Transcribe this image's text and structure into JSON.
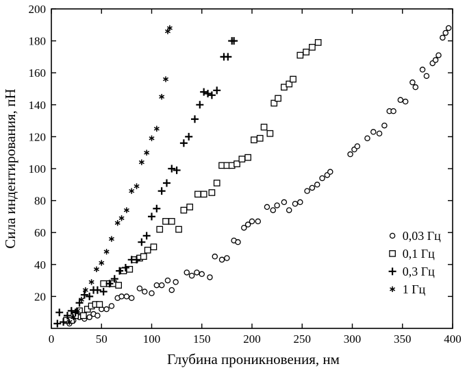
{
  "chart_data": {
    "type": "scatter",
    "title": "",
    "xlabel": "Глубина проникновения, нм",
    "ylabel": "Сила индентирования, пН",
    "xlim": [
      0,
      400
    ],
    "ylim": [
      0,
      200
    ],
    "x_ticks": [
      0,
      50,
      100,
      150,
      200,
      250,
      300,
      350,
      400
    ],
    "y_ticks": [
      20,
      40,
      60,
      80,
      100,
      120,
      140,
      160,
      180,
      200
    ],
    "x_tick_labels": [
      "0",
      "50",
      "100",
      "150",
      "200",
      "250",
      "300",
      "350",
      "400"
    ],
    "y_tick_labels": [
      "20",
      "40",
      "60",
      "80",
      "100",
      "120",
      "140",
      "160",
      "180",
      "200"
    ],
    "grid": false,
    "legend_position": "bottom-right",
    "series": [
      {
        "name": "0,03 Гц",
        "marker": "circle",
        "points": [
          [
            18,
            3
          ],
          [
            22,
            5
          ],
          [
            28,
            7
          ],
          [
            33,
            6
          ],
          [
            38,
            7
          ],
          [
            42,
            9
          ],
          [
            46,
            8
          ],
          [
            50,
            12
          ],
          [
            55,
            12
          ],
          [
            60,
            14
          ],
          [
            66,
            19
          ],
          [
            70,
            20
          ],
          [
            75,
            20
          ],
          [
            80,
            19
          ],
          [
            88,
            25
          ],
          [
            93,
            23
          ],
          [
            100,
            22
          ],
          [
            105,
            27
          ],
          [
            110,
            27
          ],
          [
            116,
            30
          ],
          [
            120,
            24
          ],
          [
            124,
            29
          ],
          [
            135,
            35
          ],
          [
            140,
            33
          ],
          [
            145,
            35
          ],
          [
            150,
            34
          ],
          [
            158,
            32
          ],
          [
            163,
            45
          ],
          [
            170,
            43
          ],
          [
            175,
            44
          ],
          [
            182,
            55
          ],
          [
            186,
            54
          ],
          [
            192,
            63
          ],
          [
            196,
            65
          ],
          [
            200,
            67
          ],
          [
            206,
            67
          ],
          [
            215,
            76
          ],
          [
            221,
            74
          ],
          [
            225,
            77
          ],
          [
            232,
            79
          ],
          [
            237,
            74
          ],
          [
            243,
            78
          ],
          [
            248,
            79
          ],
          [
            255,
            86
          ],
          [
            260,
            88
          ],
          [
            265,
            90
          ],
          [
            270,
            94
          ],
          [
            275,
            96
          ],
          [
            278,
            98
          ],
          [
            298,
            109
          ],
          [
            302,
            112
          ],
          [
            305,
            114
          ],
          [
            315,
            119
          ],
          [
            321,
            123
          ],
          [
            327,
            122
          ],
          [
            332,
            127
          ],
          [
            337,
            136
          ],
          [
            341,
            136
          ],
          [
            348,
            143
          ],
          [
            353,
            142
          ],
          [
            360,
            154
          ],
          [
            363,
            151
          ],
          [
            370,
            162
          ],
          [
            374,
            158
          ],
          [
            380,
            166
          ],
          [
            383,
            168
          ],
          [
            386,
            171
          ],
          [
            390,
            182
          ],
          [
            393,
            185
          ],
          [
            396,
            188
          ]
        ]
      },
      {
        "name": "0,1 Гц",
        "marker": "square",
        "points": [
          [
            15,
            5
          ],
          [
            20,
            5
          ],
          [
            24,
            8
          ],
          [
            28,
            11
          ],
          [
            32,
            8
          ],
          [
            36,
            12
          ],
          [
            40,
            14
          ],
          [
            44,
            15
          ],
          [
            48,
            15
          ],
          [
            52,
            28
          ],
          [
            58,
            28
          ],
          [
            62,
            28
          ],
          [
            67,
            27
          ],
          [
            72,
            36
          ],
          [
            78,
            37
          ],
          [
            83,
            43
          ],
          [
            88,
            44
          ],
          [
            92,
            45
          ],
          [
            96,
            49
          ],
          [
            102,
            51
          ],
          [
            108,
            62
          ],
          [
            114,
            67
          ],
          [
            120,
            67
          ],
          [
            127,
            62
          ],
          [
            132,
            74
          ],
          [
            138,
            76
          ],
          [
            146,
            84
          ],
          [
            152,
            84
          ],
          [
            160,
            85
          ],
          [
            165,
            91
          ],
          [
            170,
            102
          ],
          [
            175,
            102
          ],
          [
            180,
            102
          ],
          [
            185,
            103
          ],
          [
            190,
            106
          ],
          [
            196,
            107
          ],
          [
            202,
            118
          ],
          [
            208,
            119
          ],
          [
            212,
            126
          ],
          [
            218,
            122
          ],
          [
            222,
            141
          ],
          [
            226,
            144
          ],
          [
            232,
            151
          ],
          [
            237,
            153
          ],
          [
            241,
            156
          ],
          [
            248,
            171
          ],
          [
            254,
            173
          ],
          [
            260,
            176
          ],
          [
            266,
            179
          ]
        ]
      },
      {
        "name": "0,3 Гц",
        "marker": "plus",
        "points": [
          [
            6,
            3
          ],
          [
            8,
            10
          ],
          [
            12,
            4
          ],
          [
            16,
            8
          ],
          [
            20,
            11
          ],
          [
            24,
            10
          ],
          [
            28,
            16
          ],
          [
            33,
            21
          ],
          [
            38,
            20
          ],
          [
            42,
            24
          ],
          [
            46,
            24
          ],
          [
            52,
            23
          ],
          [
            58,
            28
          ],
          [
            63,
            31
          ],
          [
            68,
            36
          ],
          [
            74,
            38
          ],
          [
            80,
            43
          ],
          [
            85,
            43
          ],
          [
            90,
            54
          ],
          [
            95,
            58
          ],
          [
            100,
            70
          ],
          [
            105,
            75
          ],
          [
            110,
            86
          ],
          [
            115,
            91
          ],
          [
            120,
            100
          ],
          [
            125,
            99
          ],
          [
            132,
            116
          ],
          [
            137,
            120
          ],
          [
            143,
            131
          ],
          [
            148,
            140
          ],
          [
            152,
            148
          ],
          [
            156,
            147
          ],
          [
            160,
            146
          ],
          [
            165,
            149
          ],
          [
            172,
            170
          ],
          [
            176,
            170
          ],
          [
            180,
            180
          ],
          [
            182,
            180
          ]
        ]
      },
      {
        "name": "1 Гц",
        "marker": "asterisk",
        "points": [
          [
            18,
            4
          ],
          [
            22,
            7
          ],
          [
            26,
            11
          ],
          [
            30,
            18
          ],
          [
            34,
            24
          ],
          [
            40,
            29
          ],
          [
            45,
            37
          ],
          [
            50,
            41
          ],
          [
            55,
            48
          ],
          [
            60,
            56
          ],
          [
            66,
            66
          ],
          [
            70,
            69
          ],
          [
            75,
            74
          ],
          [
            80,
            86
          ],
          [
            85,
            89
          ],
          [
            90,
            104
          ],
          [
            95,
            110
          ],
          [
            100,
            119
          ],
          [
            105,
            125
          ],
          [
            110,
            145
          ],
          [
            114,
            156
          ],
          [
            116,
            186
          ],
          [
            118,
            188
          ]
        ]
      }
    ]
  }
}
